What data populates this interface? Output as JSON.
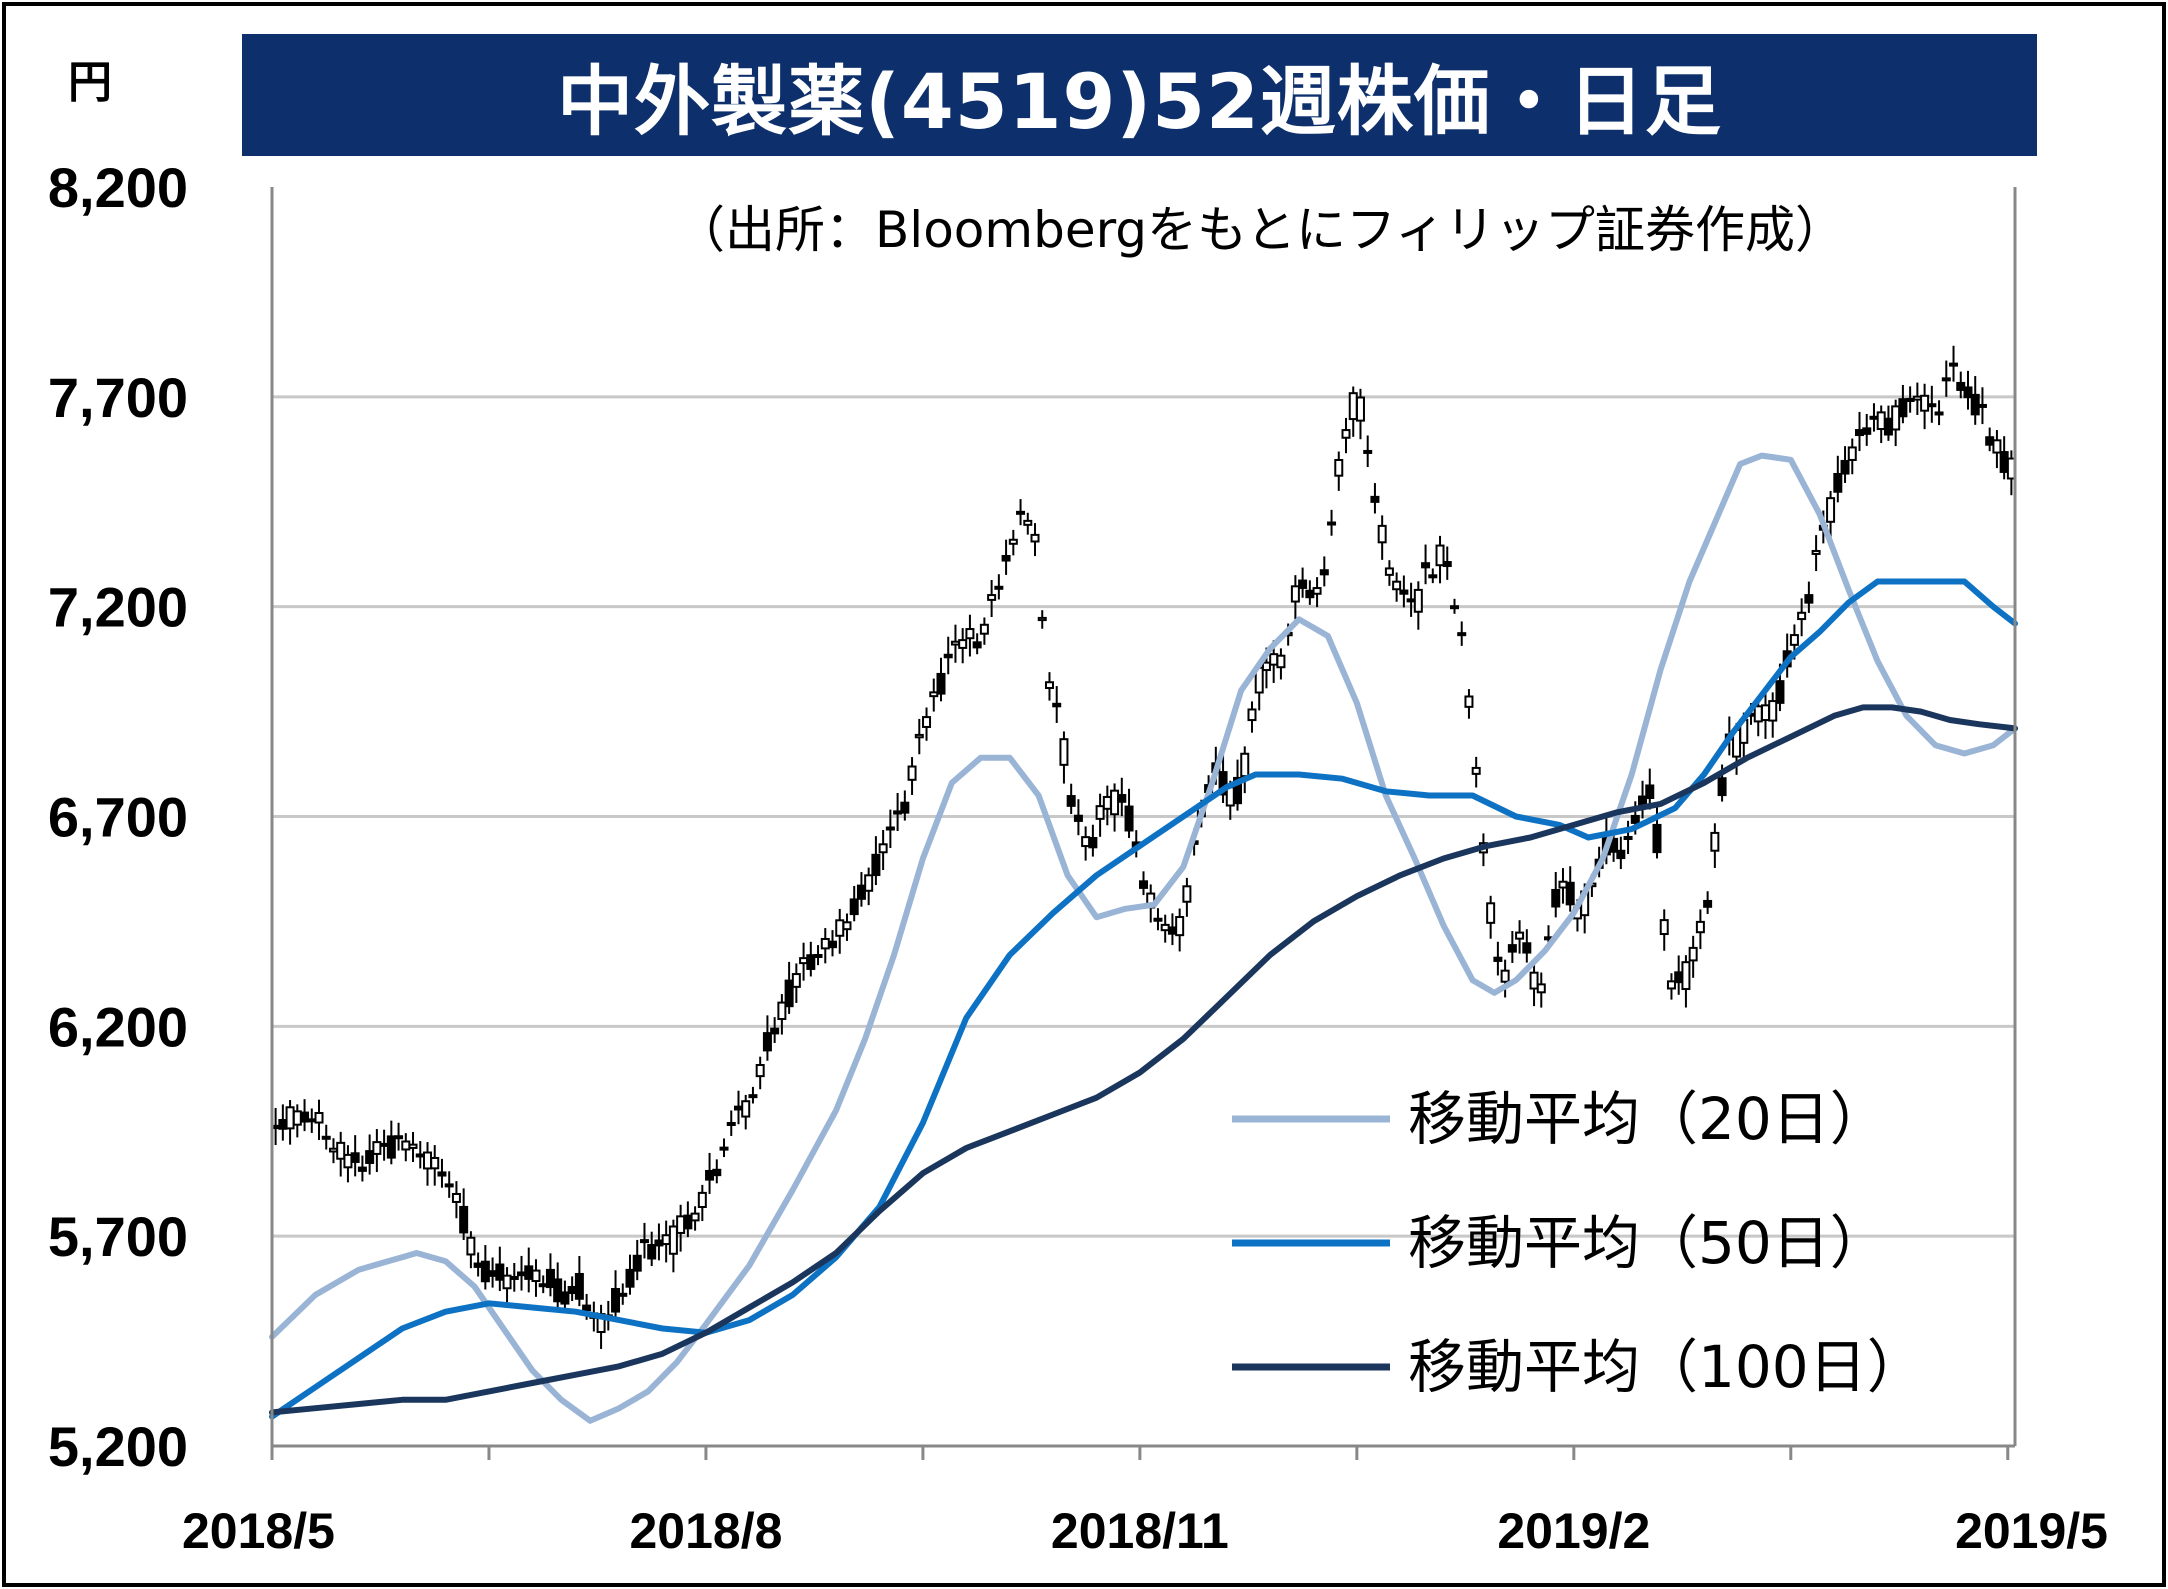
{
  "title": "中外製薬(4519)52週株価・日足",
  "unit_label": "円",
  "source_note": "（出所：Bloombergをもとにフィリップ証券作成）",
  "colors": {
    "title_bg": "#0d2f6b",
    "candle": "#000000",
    "ma20": "#9ab4d6",
    "ma50": "#0d72c3",
    "ma100": "#1b365d",
    "grid": "#c8c8c8"
  },
  "chart_data": {
    "type": "candlestick-line",
    "title": "中外製薬(4519)52週株価・日足",
    "ylabel": "円",
    "ylim": [
      5200,
      8200
    ],
    "y_ticks": [
      "8,200",
      "7,700",
      "7,200",
      "6,700",
      "6,200",
      "5,700",
      "5,200"
    ],
    "y_tick_values": [
      8200,
      7700,
      7200,
      6700,
      6200,
      5700,
      5200
    ],
    "x_ticks": [
      "2018/5",
      "2018/8",
      "2018/11",
      "2019/2",
      "2019/5"
    ],
    "x_tick_positions": [
      0,
      3,
      6,
      9,
      12
    ],
    "xlim": [
      0,
      12.05
    ],
    "grid": true,
    "legend_position": "bottom-right",
    "series": [
      {
        "name": "移動平均（20日）",
        "color": "#9ab4d6",
        "points": [
          [
            0,
            5460
          ],
          [
            0.3,
            5560
          ],
          [
            0.6,
            5620
          ],
          [
            0.9,
            5650
          ],
          [
            1.0,
            5660
          ],
          [
            1.2,
            5640
          ],
          [
            1.4,
            5580
          ],
          [
            1.6,
            5480
          ],
          [
            1.8,
            5380
          ],
          [
            2.0,
            5310
          ],
          [
            2.2,
            5260
          ],
          [
            2.4,
            5290
          ],
          [
            2.6,
            5330
          ],
          [
            2.8,
            5400
          ],
          [
            3.0,
            5490
          ],
          [
            3.3,
            5630
          ],
          [
            3.6,
            5810
          ],
          [
            3.9,
            6000
          ],
          [
            4.1,
            6170
          ],
          [
            4.3,
            6370
          ],
          [
            4.5,
            6600
          ],
          [
            4.7,
            6780
          ],
          [
            4.9,
            6840
          ],
          [
            5.1,
            6840
          ],
          [
            5.3,
            6750
          ],
          [
            5.5,
            6560
          ],
          [
            5.7,
            6460
          ],
          [
            5.9,
            6480
          ],
          [
            6.1,
            6490
          ],
          [
            6.3,
            6580
          ],
          [
            6.5,
            6780
          ],
          [
            6.7,
            7000
          ],
          [
            6.9,
            7100
          ],
          [
            7.1,
            7170
          ],
          [
            7.3,
            7130
          ],
          [
            7.5,
            6970
          ],
          [
            7.7,
            6750
          ],
          [
            7.9,
            6600
          ],
          [
            8.1,
            6440
          ],
          [
            8.3,
            6310
          ],
          [
            8.45,
            6280
          ],
          [
            8.6,
            6310
          ],
          [
            8.8,
            6380
          ],
          [
            9.0,
            6470
          ],
          [
            9.2,
            6600
          ],
          [
            9.4,
            6800
          ],
          [
            9.6,
            7050
          ],
          [
            9.8,
            7260
          ],
          [
            10.0,
            7420
          ],
          [
            10.15,
            7540
          ],
          [
            10.3,
            7560
          ],
          [
            10.5,
            7550
          ],
          [
            10.7,
            7420
          ],
          [
            10.9,
            7240
          ],
          [
            11.1,
            7070
          ],
          [
            11.3,
            6940
          ],
          [
            11.5,
            6870
          ],
          [
            11.7,
            6850
          ],
          [
            11.9,
            6870
          ],
          [
            12.05,
            6910
          ]
        ]
      },
      {
        "name": "移動平均（50日）",
        "color": "#0d72c3",
        "points": [
          [
            0,
            5270
          ],
          [
            0.3,
            5340
          ],
          [
            0.6,
            5410
          ],
          [
            0.9,
            5480
          ],
          [
            1.2,
            5520
          ],
          [
            1.5,
            5540
          ],
          [
            1.8,
            5530
          ],
          [
            2.1,
            5520
          ],
          [
            2.4,
            5500
          ],
          [
            2.7,
            5480
          ],
          [
            3.0,
            5470
          ],
          [
            3.3,
            5500
          ],
          [
            3.6,
            5560
          ],
          [
            3.9,
            5650
          ],
          [
            4.2,
            5770
          ],
          [
            4.5,
            5970
          ],
          [
            4.8,
            6220
          ],
          [
            5.1,
            6370
          ],
          [
            5.4,
            6470
          ],
          [
            5.7,
            6560
          ],
          [
            6.0,
            6630
          ],
          [
            6.3,
            6700
          ],
          [
            6.6,
            6770
          ],
          [
            6.8,
            6800
          ],
          [
            7.1,
            6800
          ],
          [
            7.4,
            6790
          ],
          [
            7.7,
            6760
          ],
          [
            8.0,
            6750
          ],
          [
            8.3,
            6750
          ],
          [
            8.6,
            6700
          ],
          [
            8.9,
            6680
          ],
          [
            9.1,
            6650
          ],
          [
            9.4,
            6670
          ],
          [
            9.7,
            6720
          ],
          [
            9.9,
            6800
          ],
          [
            10.1,
            6900
          ],
          [
            10.3,
            6990
          ],
          [
            10.5,
            7080
          ],
          [
            10.7,
            7140
          ],
          [
            10.9,
            7210
          ],
          [
            11.1,
            7260
          ],
          [
            11.4,
            7260
          ],
          [
            11.7,
            7260
          ],
          [
            11.9,
            7200
          ],
          [
            12.05,
            7160
          ]
        ]
      },
      {
        "name": "移動平均（100日）",
        "color": "#1b365d",
        "points": [
          [
            0,
            5280
          ],
          [
            0.3,
            5290
          ],
          [
            0.6,
            5300
          ],
          [
            0.9,
            5310
          ],
          [
            1.2,
            5310
          ],
          [
            1.5,
            5330
          ],
          [
            1.8,
            5350
          ],
          [
            2.1,
            5370
          ],
          [
            2.4,
            5390
          ],
          [
            2.7,
            5420
          ],
          [
            3.0,
            5470
          ],
          [
            3.3,
            5530
          ],
          [
            3.6,
            5590
          ],
          [
            3.9,
            5660
          ],
          [
            4.2,
            5760
          ],
          [
            4.5,
            5850
          ],
          [
            4.8,
            5910
          ],
          [
            5.1,
            5950
          ],
          [
            5.4,
            5990
          ],
          [
            5.7,
            6030
          ],
          [
            6.0,
            6090
          ],
          [
            6.3,
            6170
          ],
          [
            6.6,
            6270
          ],
          [
            6.9,
            6370
          ],
          [
            7.2,
            6450
          ],
          [
            7.5,
            6510
          ],
          [
            7.8,
            6560
          ],
          [
            8.1,
            6600
          ],
          [
            8.4,
            6630
          ],
          [
            8.7,
            6650
          ],
          [
            9.0,
            6680
          ],
          [
            9.3,
            6710
          ],
          [
            9.6,
            6730
          ],
          [
            9.9,
            6780
          ],
          [
            10.2,
            6840
          ],
          [
            10.5,
            6890
          ],
          [
            10.8,
            6940
          ],
          [
            11.0,
            6960
          ],
          [
            11.2,
            6960
          ],
          [
            11.4,
            6950
          ],
          [
            11.6,
            6930
          ],
          [
            11.8,
            6920
          ],
          [
            12.05,
            6910
          ]
        ]
      }
    ],
    "candles_close": [
      [
        0,
        5920
      ],
      [
        0.15,
        6000
      ],
      [
        0.3,
        5980
      ],
      [
        0.45,
        5900
      ],
      [
        0.6,
        5860
      ],
      [
        0.75,
        5900
      ],
      [
        0.9,
        5940
      ],
      [
        1.05,
        5880
      ],
      [
        1.2,
        5840
      ],
      [
        1.3,
        5760
      ],
      [
        1.45,
        5620
      ],
      [
        1.6,
        5600
      ],
      [
        1.75,
        5590
      ],
      [
        1.9,
        5610
      ],
      [
        2.0,
        5560
      ],
      [
        2.1,
        5600
      ],
      [
        2.2,
        5520
      ],
      [
        2.3,
        5480
      ],
      [
        2.4,
        5560
      ],
      [
        2.5,
        5620
      ],
      [
        2.6,
        5680
      ],
      [
        2.7,
        5660
      ],
      [
        2.8,
        5700
      ],
      [
        2.95,
        5780
      ],
      [
        3.05,
        5840
      ],
      [
        3.15,
        5960
      ],
      [
        3.25,
        6000
      ],
      [
        3.35,
        6080
      ],
      [
        3.45,
        6180
      ],
      [
        3.55,
        6260
      ],
      [
        3.65,
        6320
      ],
      [
        3.75,
        6380
      ],
      [
        3.85,
        6400
      ],
      [
        3.95,
        6430
      ],
      [
        4.05,
        6520
      ],
      [
        4.15,
        6560
      ],
      [
        4.25,
        6620
      ],
      [
        4.35,
        6700
      ],
      [
        4.45,
        6840
      ],
      [
        4.55,
        6960
      ],
      [
        4.65,
        7040
      ],
      [
        4.75,
        7100
      ],
      [
        4.85,
        7120
      ],
      [
        4.95,
        7180
      ],
      [
        5.05,
        7270
      ],
      [
        5.1,
        7330
      ],
      [
        5.15,
        7400
      ],
      [
        5.2,
        7450
      ],
      [
        5.3,
        7330
      ],
      [
        5.35,
        7060
      ],
      [
        5.45,
        6900
      ],
      [
        5.55,
        6700
      ],
      [
        5.65,
        6620
      ],
      [
        5.75,
        6720
      ],
      [
        5.85,
        6740
      ],
      [
        5.95,
        6680
      ],
      [
        6.05,
        6520
      ],
      [
        6.15,
        6450
      ],
      [
        6.25,
        6420
      ],
      [
        6.3,
        6460
      ],
      [
        6.4,
        6700
      ],
      [
        6.5,
        6820
      ],
      [
        6.6,
        6760
      ],
      [
        6.7,
        6760
      ],
      [
        6.8,
        7020
      ],
      [
        6.9,
        7040
      ],
      [
        7.0,
        7100
      ],
      [
        7.05,
        7200
      ],
      [
        7.15,
        7280
      ],
      [
        7.2,
        7220
      ],
      [
        7.3,
        7300
      ],
      [
        7.35,
        7500
      ],
      [
        7.45,
        7640
      ],
      [
        7.5,
        7720
      ],
      [
        7.6,
        7500
      ],
      [
        7.7,
        7320
      ],
      [
        7.8,
        7240
      ],
      [
        7.9,
        7180
      ],
      [
        8.0,
        7300
      ],
      [
        8.1,
        7320
      ],
      [
        8.2,
        7200
      ],
      [
        8.25,
        7080
      ],
      [
        8.35,
        6720
      ],
      [
        8.4,
        6540
      ],
      [
        8.5,
        6280
      ],
      [
        8.6,
        6420
      ],
      [
        8.7,
        6380
      ],
      [
        8.75,
        6220
      ],
      [
        8.85,
        6480
      ],
      [
        8.95,
        6540
      ],
      [
        9.05,
        6460
      ],
      [
        9.15,
        6580
      ],
      [
        9.25,
        6640
      ],
      [
        9.35,
        6600
      ],
      [
        9.45,
        6720
      ],
      [
        9.55,
        6760
      ],
      [
        9.65,
        6320
      ],
      [
        9.75,
        6300
      ],
      [
        9.85,
        6380
      ],
      [
        9.95,
        6560
      ],
      [
        10.05,
        6860
      ],
      [
        10.15,
        6880
      ],
      [
        10.25,
        6980
      ],
      [
        10.3,
        6920
      ],
      [
        10.4,
        6960
      ],
      [
        10.5,
        7100
      ],
      [
        10.6,
        7180
      ],
      [
        10.7,
        7350
      ],
      [
        10.8,
        7460
      ],
      [
        10.9,
        7560
      ],
      [
        11.0,
        7600
      ],
      [
        11.1,
        7660
      ],
      [
        11.2,
        7640
      ],
      [
        11.3,
        7700
      ],
      [
        11.4,
        7680
      ],
      [
        11.5,
        7640
      ],
      [
        11.6,
        7740
      ],
      [
        11.65,
        7760
      ],
      [
        11.75,
        7680
      ],
      [
        11.85,
        7640
      ],
      [
        11.95,
        7560
      ],
      [
        12.05,
        7520
      ]
    ]
  },
  "legend": {
    "items": [
      {
        "label": "移動平均（20日）",
        "color": "#9ab4d6"
      },
      {
        "label": "移動平均（50日）",
        "color": "#0d72c3"
      },
      {
        "label": "移動平均（100日）",
        "color": "#1b365d"
      }
    ]
  }
}
